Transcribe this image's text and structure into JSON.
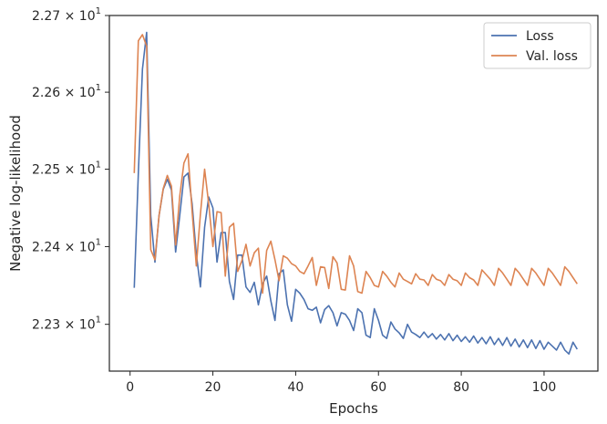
{
  "chart_data": {
    "type": "line",
    "xlabel": "Epochs",
    "ylabel": "Negative log-likelihood",
    "yscale": "log",
    "xlim": [
      -5,
      113
    ],
    "ylim": [
      22.24,
      22.7
    ],
    "x_ticks": [
      0,
      20,
      40,
      60,
      80,
      100
    ],
    "x_tick_labels": [
      "0",
      "20",
      "40",
      "60",
      "80",
      "100"
    ],
    "y_ticks": [
      22.3,
      22.4,
      22.5,
      22.6,
      22.7
    ],
    "y_tick_labels": [
      {
        "mantissa": "2.23",
        "exponent": "1"
      },
      {
        "mantissa": "2.24",
        "exponent": "1"
      },
      {
        "mantissa": "2.25",
        "exponent": "1"
      },
      {
        "mantissa": "2.26",
        "exponent": "1"
      },
      {
        "mantissa": "2.27",
        "exponent": "1"
      }
    ],
    "y_tick_multiplier": "× 10",
    "grid": false,
    "legend_position": "top-right",
    "series": [
      {
        "name": "Loss",
        "color": "#4c72b0",
        "x": [
          1,
          2,
          3,
          4,
          5,
          6,
          7,
          8,
          9,
          10,
          11,
          12,
          13,
          14,
          15,
          16,
          17,
          18,
          19,
          20,
          21,
          22,
          23,
          24,
          25,
          26,
          27,
          28,
          29,
          30,
          31,
          32,
          33,
          34,
          35,
          36,
          37,
          38,
          39,
          40,
          41,
          42,
          43,
          44,
          45,
          46,
          47,
          48,
          49,
          50,
          51,
          52,
          53,
          54,
          55,
          56,
          57,
          58,
          59,
          60,
          61,
          62,
          63,
          64,
          65,
          66,
          67,
          68,
          69,
          70,
          71,
          72,
          73,
          74,
          75,
          76,
          77,
          78,
          79,
          80,
          81,
          82,
          83,
          84,
          85,
          86,
          87,
          88,
          89,
          90,
          91,
          92,
          93,
          94,
          95,
          96,
          97,
          98,
          99,
          100,
          101,
          102,
          103,
          104,
          105,
          106,
          107,
          108
        ],
        "values": [
          22.347,
          22.495,
          22.63,
          22.678,
          22.44,
          22.38,
          22.44,
          22.474,
          22.487,
          22.473,
          22.393,
          22.44,
          22.49,
          22.495,
          22.455,
          22.39,
          22.348,
          22.425,
          22.464,
          22.45,
          22.38,
          22.418,
          22.418,
          22.355,
          22.332,
          22.389,
          22.389,
          22.348,
          22.341,
          22.354,
          22.325,
          22.352,
          22.362,
          22.33,
          22.305,
          22.365,
          22.37,
          22.325,
          22.304,
          22.345,
          22.34,
          22.332,
          22.32,
          22.318,
          22.322,
          22.302,
          22.319,
          22.324,
          22.315,
          22.298,
          22.315,
          22.313,
          22.305,
          22.292,
          22.32,
          22.315,
          22.286,
          22.283,
          22.32,
          22.305,
          22.286,
          22.282,
          22.303,
          22.294,
          22.289,
          22.282,
          22.3,
          22.29,
          22.287,
          22.283,
          22.29,
          22.283,
          22.288,
          22.281,
          22.287,
          22.28,
          22.288,
          22.279,
          22.286,
          22.278,
          22.284,
          22.277,
          22.285,
          22.276,
          22.283,
          22.275,
          22.284,
          22.274,
          22.282,
          22.273,
          22.283,
          22.272,
          22.281,
          22.271,
          22.28,
          22.27,
          22.28,
          22.269,
          22.279,
          22.268,
          22.277,
          22.272,
          22.267,
          22.277,
          22.267,
          22.262,
          22.277,
          22.268
        ]
      },
      {
        "name": "Val. loss",
        "color": "#dd8452",
        "x": [
          1,
          2,
          3,
          4,
          5,
          6,
          7,
          8,
          9,
          10,
          11,
          12,
          13,
          14,
          15,
          16,
          17,
          18,
          19,
          20,
          21,
          22,
          23,
          24,
          25,
          26,
          27,
          28,
          29,
          30,
          31,
          32,
          33,
          34,
          35,
          36,
          37,
          38,
          39,
          40,
          41,
          42,
          43,
          44,
          45,
          46,
          47,
          48,
          49,
          50,
          51,
          52,
          53,
          54,
          55,
          56,
          57,
          58,
          59,
          60,
          61,
          62,
          63,
          64,
          65,
          66,
          67,
          68,
          69,
          70,
          71,
          72,
          73,
          74,
          75,
          76,
          77,
          78,
          79,
          80,
          81,
          82,
          83,
          84,
          85,
          86,
          87,
          88,
          89,
          90,
          91,
          92,
          93,
          94,
          95,
          96,
          97,
          98,
          99,
          100,
          101,
          102,
          103,
          104,
          105,
          106,
          107,
          108
        ],
        "values": [
          22.495,
          22.667,
          22.675,
          22.66,
          22.396,
          22.383,
          22.44,
          22.475,
          22.492,
          22.478,
          22.402,
          22.465,
          22.508,
          22.52,
          22.445,
          22.375,
          22.442,
          22.5,
          22.455,
          22.4,
          22.445,
          22.444,
          22.362,
          22.425,
          22.43,
          22.368,
          22.382,
          22.403,
          22.375,
          22.392,
          22.398,
          22.34,
          22.395,
          22.407,
          22.383,
          22.356,
          22.388,
          22.385,
          22.378,
          22.375,
          22.368,
          22.365,
          22.375,
          22.386,
          22.35,
          22.374,
          22.373,
          22.346,
          22.387,
          22.379,
          22.345,
          22.344,
          22.388,
          22.375,
          22.342,
          22.34,
          22.368,
          22.36,
          22.35,
          22.348,
          22.368,
          22.362,
          22.354,
          22.348,
          22.366,
          22.358,
          22.355,
          22.352,
          22.365,
          22.358,
          22.357,
          22.35,
          22.364,
          22.358,
          22.356,
          22.35,
          22.364,
          22.358,
          22.356,
          22.35,
          22.366,
          22.36,
          22.357,
          22.35,
          22.37,
          22.364,
          22.358,
          22.35,
          22.372,
          22.366,
          22.358,
          22.35,
          22.372,
          22.366,
          22.358,
          22.35,
          22.372,
          22.366,
          22.358,
          22.35,
          22.372,
          22.366,
          22.358,
          22.35,
          22.374,
          22.368,
          22.36,
          22.352
        ]
      }
    ]
  }
}
